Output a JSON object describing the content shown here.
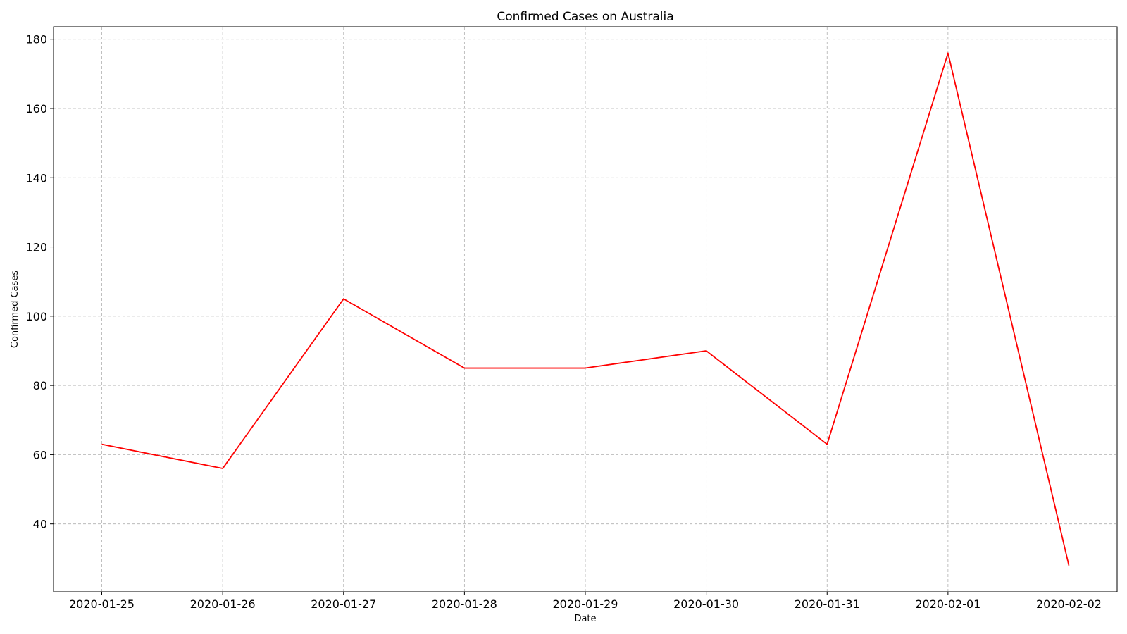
{
  "chart_data": {
    "type": "line",
    "title": "Confirmed Cases on Australia",
    "xlabel": "Date",
    "ylabel": "Confirmed Cases",
    "x": [
      "2020-01-25",
      "2020-01-26",
      "2020-01-27",
      "2020-01-28",
      "2020-01-29",
      "2020-01-30",
      "2020-01-31",
      "2020-02-01",
      "2020-02-02"
    ],
    "series": [
      {
        "values": [
          63,
          56,
          105,
          85,
          85,
          90,
          63,
          176,
          28
        ],
        "color": "#ff0000"
      }
    ],
    "yticks": [
      40,
      60,
      80,
      100,
      120,
      140,
      160,
      180
    ],
    "ylim": [
      20.4,
      183.6
    ],
    "grid": true,
    "grid_style": "dashed"
  }
}
